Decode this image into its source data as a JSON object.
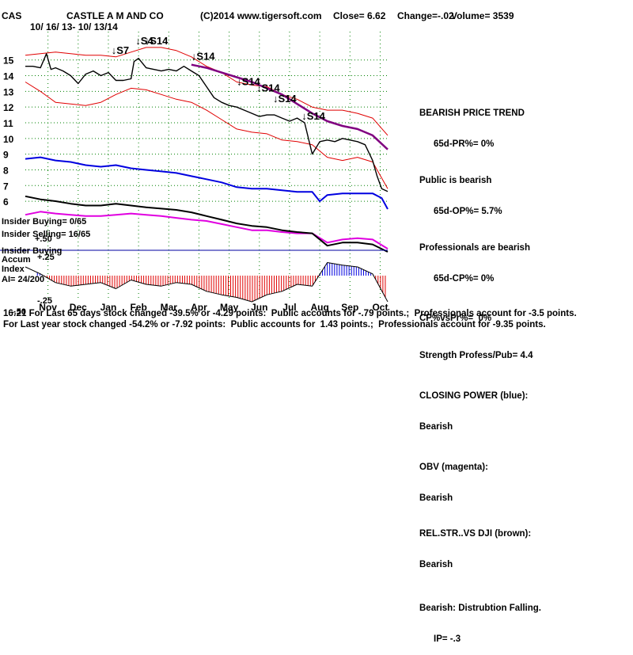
{
  "header": {
    "symbol": "CAS",
    "company": "CASTLE A M AND CO",
    "copyright": "(C)2014 www.tigersoft.com",
    "close_text": "Close=  6.62",
    "change_text": "Change=-.02",
    "volume_text": "Volume= 3539",
    "date_range": "10/ 16/ 13- 10/ 13/14"
  },
  "colors": {
    "price": "#000000",
    "bands": "#e00000",
    "ma": "#800080",
    "closing_power": "#0000e0",
    "obv": "#e000e0",
    "rel_str": "#000000",
    "accum_pos": "#0000e0",
    "accum_neg": "#e00000",
    "grid": "#008000"
  },
  "left_labels": {
    "insider_buying": "Insider Buying= 0/65",
    "insider_selling": "Insider Selling= 16/65",
    "accum_title": "Insider Buying",
    "accum_sub1": "Accum",
    "accum_sub2": "Index",
    "ai": "AI= 24/200",
    "tick_pos50": "+.50",
    "tick_pos25": "+.25",
    "tick_neg25": "-.25",
    "tick_neg50": "-.50"
  },
  "signals": [
    {
      "label": "S7",
      "x": 5.7,
      "y": 15.4
    },
    {
      "label": "S4",
      "x": 7.3,
      "y": 16.0
    },
    {
      "label": "S14",
      "x": 7.9,
      "y": 16.0
    },
    {
      "label": "S14",
      "x": 11.0,
      "y": 15.0
    },
    {
      "label": "S14",
      "x": 14.0,
      "y": 13.4
    },
    {
      "label": "S14",
      "x": 15.3,
      "y": 13.0
    },
    {
      "label": "S14",
      "x": 16.4,
      "y": 12.3
    },
    {
      "label": "S14",
      "x": 18.3,
      "y": 11.2
    }
  ],
  "sidebar": {
    "trend_title": "BEARISH PRICE TREND",
    "pr": "65d-PR%= 0%",
    "public_title": "Public is bearish",
    "op": "65d-OP%= 5.7%",
    "pros_title": "Professionals are bearish",
    "cp": "65d-CP%= 0%",
    "cp_vs_pr": "CP%vsPr%=  0%",
    "strength": "Strength Profess/Pub= 4.4",
    "closing_power_title": "CLOSING POWER (blue):",
    "closing_power_value": "Bearish",
    "obv_title": "OBV (magenta):",
    "obv_value": "Bearish",
    "relstr_title": "REL.STR..VS DJI (brown):",
    "relstr_value": "Bearish",
    "accum_title": "Bearish: Distrubtion Falling.",
    "accum_ip": "IP= -.3"
  },
  "footer": {
    "line1_prefix": "16:21",
    "line1": "For Last 65 days stock changed -39.5% or -4.29 points:  Public accounts for -.79 points.;  Professionals account for -3.5 points.",
    "line2": "For Last year stock changed -54.2% or -7.92 points:  Public accounts for  1.43 points.;  Professionals account for -9.35 points."
  },
  "chart_data": {
    "type": "line",
    "title": "CASTLE A M AND CO",
    "x_range_months": [
      0,
      24
    ],
    "ylim": [
      5.5,
      16.5
    ],
    "yticks": [
      6,
      7,
      8,
      9,
      10,
      11,
      12,
      13,
      14,
      15
    ],
    "month_labels": [
      "Nov",
      "Dec",
      "Jan",
      "Feb",
      "Mar",
      "Apr",
      "May",
      "Jun",
      "Jul",
      "Aug",
      "Sep",
      "Oct"
    ],
    "month_positions": [
      1.5,
      3.5,
      5.5,
      7.5,
      9.5,
      11.5,
      13.5,
      15.5,
      17.5,
      19.5,
      21.5,
      23.5
    ],
    "grid": true,
    "series": [
      {
        "key": "price",
        "x": [
          0,
          0.5,
          1,
          1.4,
          1.7,
          2,
          2.5,
          3,
          3.5,
          4,
          4.5,
          5,
          5.5,
          6,
          6.5,
          7,
          7.2,
          7.5,
          8,
          8.5,
          9,
          9.5,
          10,
          10.5,
          11,
          11.5,
          12,
          12.5,
          13,
          13.5,
          14,
          14.5,
          15,
          15.5,
          16,
          16.5,
          17,
          17.5,
          18,
          18.5,
          19,
          19.5,
          20,
          20.5,
          21,
          21.5,
          22,
          22.5,
          23,
          23.3,
          23.6,
          24
        ],
        "y": [
          14.6,
          14.6,
          14.5,
          15.4,
          14.4,
          14.5,
          14.3,
          14.0,
          13.5,
          14.1,
          14.3,
          14.0,
          14.2,
          13.7,
          13.7,
          13.8,
          14.9,
          15.1,
          14.5,
          14.4,
          14.3,
          14.4,
          14.3,
          14.6,
          14.3,
          14.0,
          13.3,
          12.6,
          12.3,
          12.1,
          12.0,
          11.8,
          11.6,
          11.4,
          11.5,
          11.5,
          11.3,
          11.1,
          11.3,
          11.0,
          9.0,
          9.8,
          9.9,
          9.8,
          10.0,
          9.9,
          9.8,
          9.6,
          8.6,
          7.6,
          6.8,
          6.62
        ]
      },
      {
        "key": "ma",
        "x": [
          11,
          12,
          13,
          14,
          15,
          16,
          17,
          18,
          19,
          20,
          21,
          22,
          23,
          24
        ],
        "y": [
          14.7,
          14.5,
          14.2,
          13.9,
          13.6,
          13.2,
          12.8,
          12.2,
          11.6,
          11.1,
          10.8,
          10.6,
          10.2,
          9.3
        ]
      },
      {
        "key": "upper_band",
        "x": [
          0,
          1,
          2,
          3,
          4,
          5,
          6,
          7,
          8,
          9,
          10,
          11,
          12,
          13,
          14,
          15,
          16,
          17,
          18,
          19,
          20,
          21,
          22,
          23,
          24
        ],
        "y": [
          15.3,
          15.4,
          15.5,
          15.4,
          15.3,
          15.3,
          15.2,
          15.5,
          15.8,
          15.8,
          15.6,
          15.2,
          14.6,
          14.2,
          13.6,
          13.4,
          13.3,
          12.8,
          12.5,
          12.0,
          11.8,
          11.8,
          11.6,
          11.3,
          10.2
        ]
      },
      {
        "key": "lower_band",
        "x": [
          0,
          1,
          2,
          3,
          4,
          5,
          6,
          7,
          8,
          9,
          10,
          11,
          12,
          13,
          14,
          15,
          16,
          17,
          18,
          19,
          20,
          21,
          22,
          23,
          24
        ],
        "y": [
          13.6,
          13.0,
          12.3,
          12.2,
          12.1,
          12.3,
          12.8,
          13.2,
          13.1,
          12.8,
          12.5,
          12.3,
          11.8,
          11.2,
          10.6,
          10.4,
          10.3,
          9.9,
          9.8,
          9.6,
          8.8,
          8.6,
          8.8,
          8.5,
          6.8
        ]
      },
      {
        "key": "closing_power",
        "x": [
          0,
          1,
          2,
          3,
          4,
          5,
          6,
          7,
          8,
          9,
          10,
          11,
          12,
          13,
          14,
          15,
          16,
          17,
          18,
          19,
          19.5,
          20,
          21,
          22,
          23,
          23.6,
          24
        ],
        "y": [
          8.7,
          8.8,
          8.6,
          8.5,
          8.3,
          8.2,
          8.3,
          8.1,
          8.0,
          7.9,
          7.8,
          7.6,
          7.4,
          7.2,
          6.9,
          6.8,
          6.8,
          6.7,
          6.6,
          6.6,
          6.0,
          6.4,
          6.5,
          6.5,
          6.5,
          6.2,
          5.5
        ]
      }
    ],
    "lower_panels": {
      "obv": {
        "x": [
          0,
          1,
          2,
          3,
          4,
          5,
          6,
          7,
          8,
          9,
          10,
          11,
          12,
          13,
          14,
          15,
          16,
          17,
          18,
          19,
          20,
          21,
          22,
          23,
          24
        ],
        "y": [
          0.6,
          0.65,
          0.62,
          0.6,
          0.58,
          0.58,
          0.6,
          0.62,
          0.6,
          0.58,
          0.55,
          0.52,
          0.5,
          0.45,
          0.4,
          0.35,
          0.35,
          0.32,
          0.3,
          0.3,
          0.15,
          0.2,
          0.22,
          0.2,
          0.05
        ]
      },
      "rel_str": {
        "x": [
          0,
          1,
          2,
          3,
          4,
          5,
          6,
          7,
          8,
          9,
          10,
          11,
          12,
          13,
          14,
          15,
          16,
          17,
          18,
          19,
          20,
          21,
          22,
          23,
          24
        ],
        "y": [
          0.9,
          0.85,
          0.82,
          0.78,
          0.75,
          0.75,
          0.78,
          0.75,
          0.72,
          0.7,
          0.68,
          0.64,
          0.58,
          0.52,
          0.46,
          0.42,
          0.4,
          0.35,
          0.32,
          0.3,
          0.1,
          0.15,
          0.15,
          0.12,
          0.0
        ]
      },
      "accum_index": {
        "x": [
          0,
          1,
          2,
          3,
          4,
          5,
          6,
          7,
          8,
          9,
          10,
          11,
          12,
          13,
          14,
          15,
          16,
          17,
          18,
          19,
          20,
          21,
          22,
          23,
          24
        ],
        "y": [
          0.1,
          0.02,
          -0.08,
          -0.12,
          -0.1,
          -0.08,
          -0.15,
          -0.05,
          -0.1,
          -0.12,
          -0.08,
          -0.1,
          -0.18,
          -0.22,
          -0.25,
          -0.3,
          -0.22,
          -0.18,
          -0.1,
          -0.12,
          0.15,
          0.12,
          0.1,
          0.02,
          -0.3
        ]
      }
    }
  }
}
